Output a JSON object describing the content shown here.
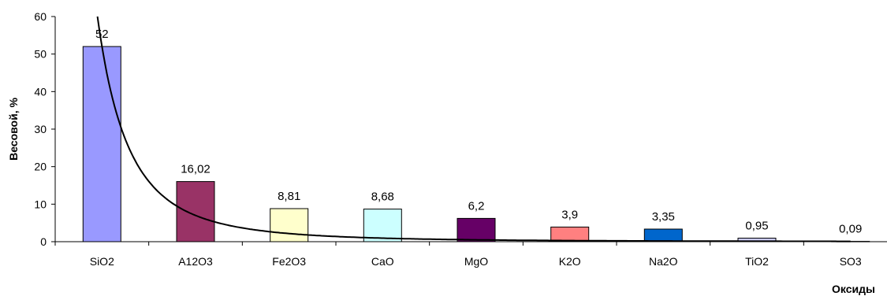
{
  "chart_data": {
    "type": "bar",
    "categories": [
      "SiO2",
      "A12O3",
      "Fe2O3",
      "CaO",
      "MgO",
      "K2O",
      "Na2O",
      "TiO2",
      "SO3"
    ],
    "values": [
      52,
      16.02,
      8.81,
      8.68,
      6.2,
      3.9,
      3.35,
      0.95,
      0.09
    ],
    "value_labels": [
      "52",
      "16,02",
      "8,81",
      "8,68",
      "6,2",
      "3,9",
      "3,35",
      "0,95",
      "0,09"
    ],
    "bar_colors": [
      "#9999ff",
      "#993366",
      "#ffffcc",
      "#ccffff",
      "#660066",
      "#ff8080",
      "#0066cc",
      "#ccccff",
      "#ffffff"
    ],
    "trendline": {
      "type": "power",
      "color": "#000000"
    },
    "xlabel": "Оксиды",
    "ylabel": "Весовой, %",
    "ylim": [
      0,
      60
    ],
    "yticks": [
      0,
      10,
      20,
      30,
      40,
      50,
      60
    ],
    "grid": false,
    "legend": "none"
  }
}
